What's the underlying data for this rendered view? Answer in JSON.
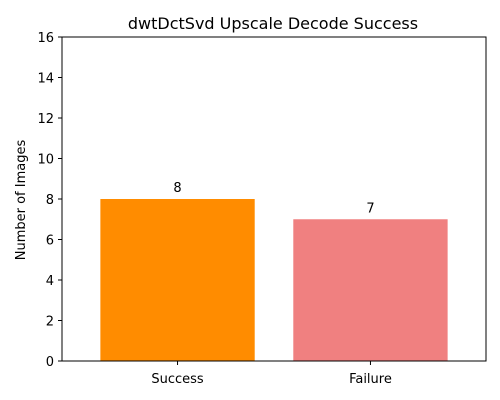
{
  "chart_data": {
    "type": "bar",
    "title": "dwtDctSvd Upscale Decode Success",
    "xlabel": "",
    "ylabel": "Number of Images",
    "categories": [
      "Success",
      "Failure"
    ],
    "values": [
      8,
      7
    ],
    "colors": [
      "#ff8c00",
      "#f08080"
    ],
    "ylim": [
      0,
      16
    ],
    "yticks": [
      0,
      2,
      4,
      6,
      8,
      10,
      12,
      14,
      16
    ],
    "grid": false,
    "legend": "none"
  }
}
